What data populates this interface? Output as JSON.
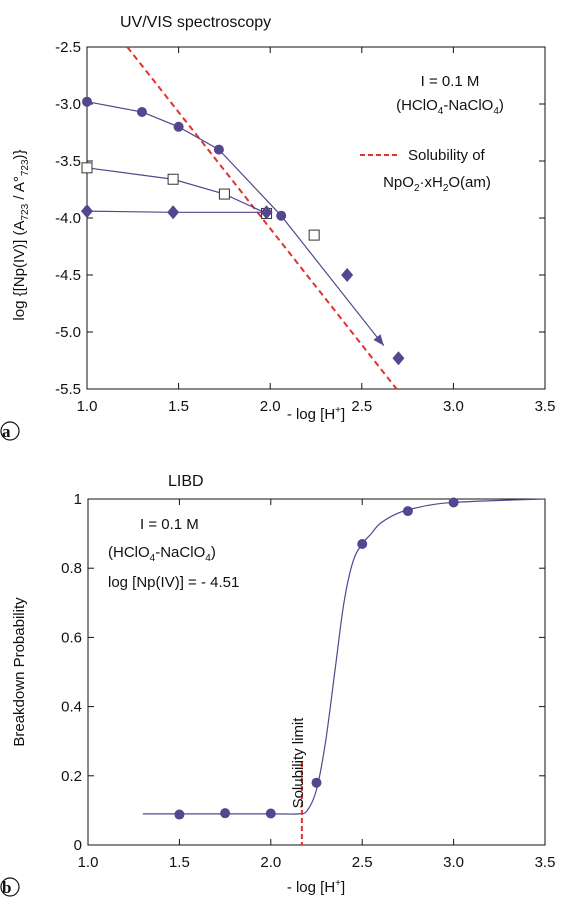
{
  "colors": {
    "series": "#54468f",
    "solubility": "#e53030",
    "axis": "#111111"
  },
  "chart_data": [
    {
      "type": "scatter",
      "title": "UV/VIS spectroscopy",
      "panel_label": "a",
      "xlabel": "- log [H+]",
      "ylabel": "log {[Np(IV)] (A723 / A°723)}",
      "xlim": [
        1.0,
        3.5
      ],
      "ylim": [
        -5.5,
        -2.5
      ],
      "xticks": [
        "1.0",
        "1.5",
        "2.0",
        "2.5",
        "3.0",
        "3.5"
      ],
      "yticks": [
        "-2.5",
        "-3.0",
        "-3.5",
        "-4.0",
        "-4.5",
        "-5.0",
        "-5.5"
      ],
      "conditions": [
        "I = 0.1 M",
        "(HClO4-NaClO4)"
      ],
      "legend": {
        "entry": "Solubility of",
        "entry2": "NpO2·xH2O(am)",
        "position": "right"
      },
      "series": [
        {
          "marker": "circle-filled",
          "x": [
            1.0,
            1.3,
            1.5,
            1.72,
            2.06
          ],
          "y": [
            -2.98,
            -3.07,
            -3.2,
            -3.4,
            -3.98
          ],
          "connected": true
        },
        {
          "marker": "square-open",
          "x": [
            1.0,
            1.47,
            1.75,
            1.98,
            2.24
          ],
          "y": [
            -3.56,
            -3.66,
            -3.79,
            -3.96,
            -4.15
          ],
          "connected_points": 4
        },
        {
          "marker": "diamond-filled",
          "x": [
            1.0,
            1.47,
            1.98,
            2.42,
            2.7
          ],
          "y": [
            -3.94,
            -3.95,
            -3.95,
            -4.5,
            -5.23
          ],
          "connected_points": 3
        }
      ],
      "arrow": {
        "from": [
          2.06,
          -3.98
        ],
        "to": [
          2.62,
          -5.12
        ]
      },
      "solubility_line": {
        "from": [
          1.22,
          -2.5
        ],
        "to": [
          2.69,
          -5.5
        ],
        "style": "dashed"
      }
    },
    {
      "type": "scatter",
      "title": "LIBD",
      "panel_label": "b",
      "xlabel": "- log [H+]",
      "ylabel": "Breakdown Probability",
      "xlim": [
        1.0,
        3.5
      ],
      "ylim": [
        0,
        1
      ],
      "xticks": [
        "1.0",
        "1.5",
        "2.0",
        "2.5",
        "3.0",
        "3.5"
      ],
      "yticks": [
        "0",
        "0.2",
        "0.4",
        "0.6",
        "0.8",
        "1"
      ],
      "conditions": [
        "I = 0.1 M",
        "(HClO4-NaClO4)",
        "log [Np(IV)] = - 4.51"
      ],
      "points": {
        "x": [
          1.5,
          1.75,
          2.0,
          2.25,
          2.5,
          2.75,
          3.0
        ],
        "y": [
          0.088,
          0.092,
          0.091,
          0.18,
          0.87,
          0.965,
          0.99
        ]
      },
      "fit_curve": {
        "x": [
          1.3,
          2.0,
          2.15,
          2.2,
          2.25,
          2.3,
          2.35,
          2.4,
          2.45,
          2.5,
          2.55,
          2.6,
          2.7,
          2.8,
          2.9,
          3.0,
          3.2,
          3.5
        ],
        "y": [
          0.09,
          0.09,
          0.09,
          0.1,
          0.16,
          0.3,
          0.5,
          0.7,
          0.82,
          0.87,
          0.9,
          0.93,
          0.96,
          0.975,
          0.985,
          0.99,
          0.995,
          1.0
        ]
      },
      "solubility_limit": {
        "x": 2.17,
        "label": "Solubility limit"
      }
    }
  ]
}
